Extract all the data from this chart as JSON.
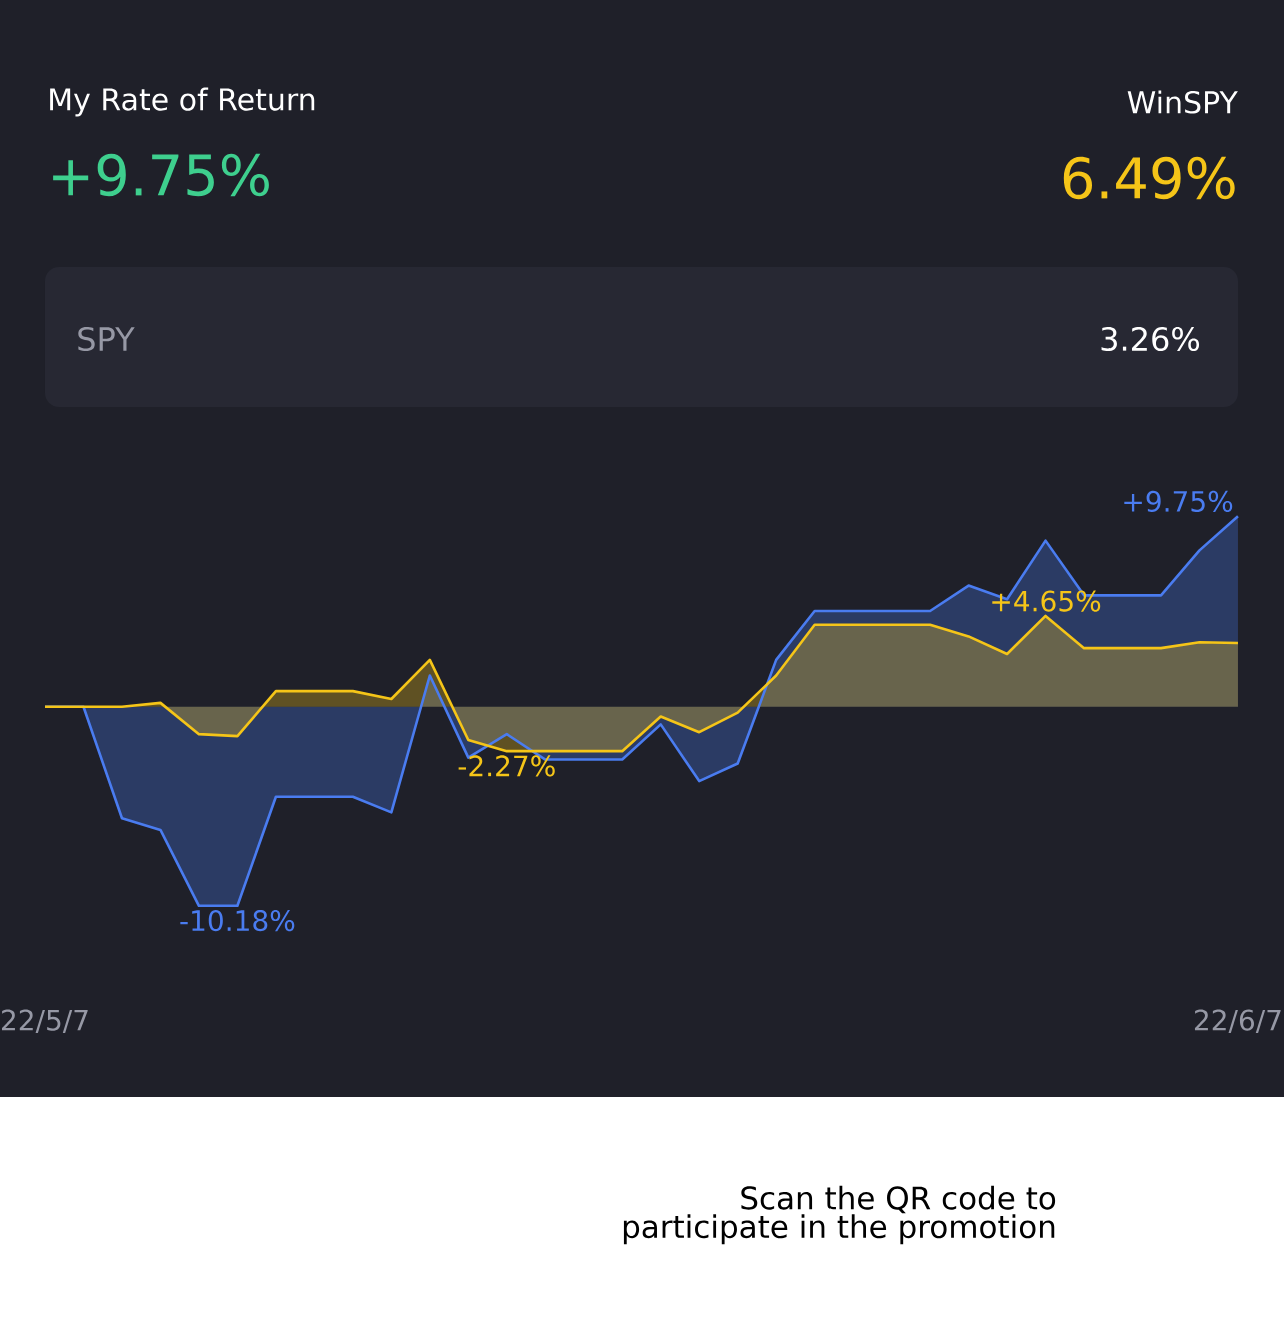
{
  "chart_data": {
    "type": "area",
    "title": "My Rate of Return",
    "categories": [
      "22/5/7",
      null,
      null,
      null,
      null,
      null,
      null,
      null,
      null,
      null,
      null,
      null,
      null,
      null,
      null,
      null,
      null,
      null,
      null,
      null,
      null,
      null,
      null,
      null,
      null,
      null,
      null,
      null,
      null,
      null,
      null,
      "22/6/7"
    ],
    "series": [
      {
        "color": "#4a7cf0",
        "values": [
          0,
          0,
          -5.7,
          -6.3,
          -10.18,
          -10.18,
          -4.6,
          -4.6,
          -4.6,
          -5.4,
          1.6,
          -2.6,
          -1.4,
          -2.7,
          -2.7,
          -2.7,
          -0.9,
          -3.8,
          -2.9,
          2.4,
          4.9,
          4.9,
          4.9,
          4.9,
          6.2,
          5.5,
          8.5,
          5.7,
          5.7,
          5.7,
          8.0,
          9.75
        ],
        "value_labels": [
          null,
          null,
          null,
          null,
          null,
          "-10.18%",
          null,
          null,
          null,
          null,
          null,
          null,
          null,
          null,
          null,
          null,
          null,
          null,
          null,
          null,
          null,
          null,
          null,
          null,
          null,
          null,
          null,
          null,
          null,
          null,
          null,
          "+9.75%"
        ]
      },
      {
        "color": "#f5c518",
        "values": [
          0,
          0,
          0,
          0.2,
          -1.4,
          -1.5,
          0.8,
          0.8,
          0.8,
          0.4,
          2.4,
          -1.7,
          -2.27,
          -2.27,
          -2.27,
          -2.27,
          -0.5,
          -1.3,
          -0.3,
          1.6,
          4.2,
          4.2,
          4.2,
          4.2,
          3.6,
          2.7,
          4.65,
          3.0,
          3.0,
          3.0,
          3.3,
          3.26
        ],
        "value_labels": [
          null,
          null,
          null,
          null,
          null,
          null,
          null,
          null,
          null,
          null,
          null,
          null,
          "-2.27%",
          null,
          null,
          null,
          null,
          null,
          null,
          null,
          null,
          null,
          null,
          null,
          null,
          null,
          "+4.65%",
          null,
          null,
          null,
          null,
          null
        ]
      }
    ],
    "annotations": [
      "+9.75%",
      "WinSPY",
      "6.49%",
      "SPY",
      "3.26%",
      "Scan the QR code to participate in the promotion"
    ]
  }
}
